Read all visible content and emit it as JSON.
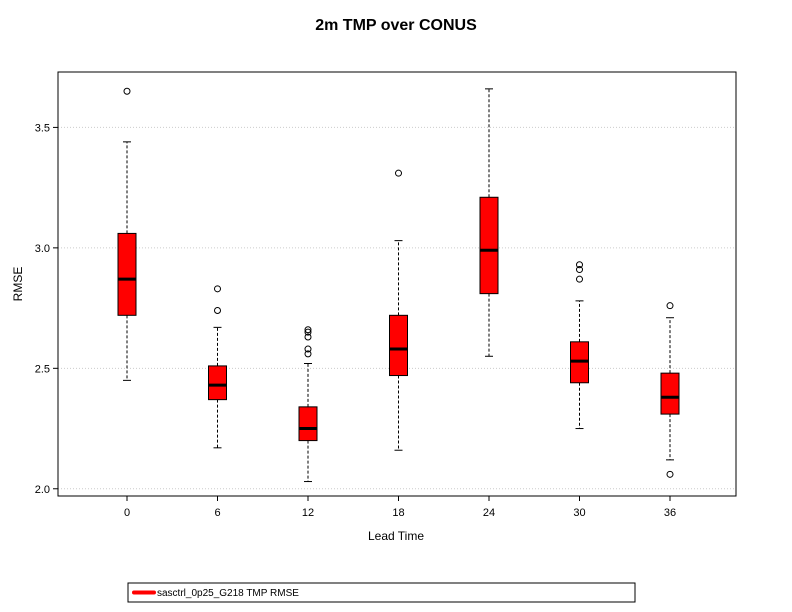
{
  "chart_data": {
    "type": "box",
    "title": "2m TMP over CONUS",
    "xlabel": "Lead Time",
    "ylabel": "RMSE",
    "categories": [
      "0",
      "6",
      "12",
      "18",
      "24",
      "30",
      "36"
    ],
    "yticks": [
      "2.0",
      "2.5",
      "3.0",
      "3.5"
    ],
    "ylim": [
      1.97,
      3.73
    ],
    "grid": true,
    "legend_position": "bottom",
    "series": [
      {
        "name": "sasctrl_0p25_G218 TMP RMSE",
        "color": "#ff0000",
        "boxes": [
          {
            "whisker_low": 2.45,
            "q1": 2.72,
            "median": 2.87,
            "q3": 3.06,
            "whisker_high": 3.44,
            "outliers": [
              3.65
            ]
          },
          {
            "whisker_low": 2.17,
            "q1": 2.37,
            "median": 2.43,
            "q3": 2.51,
            "whisker_high": 2.67,
            "outliers": [
              2.74,
              2.83
            ]
          },
          {
            "whisker_low": 2.03,
            "q1": 2.2,
            "median": 2.25,
            "q3": 2.34,
            "whisker_high": 2.52,
            "outliers": [
              2.56,
              2.58,
              2.63,
              2.65,
              2.66
            ]
          },
          {
            "whisker_low": 2.16,
            "q1": 2.47,
            "median": 2.58,
            "q3": 2.72,
            "whisker_high": 3.03,
            "outliers": [
              3.31
            ]
          },
          {
            "whisker_low": 2.55,
            "q1": 2.81,
            "median": 2.99,
            "q3": 3.21,
            "whisker_high": 3.66,
            "outliers": []
          },
          {
            "whisker_low": 2.25,
            "q1": 2.44,
            "median": 2.53,
            "q3": 2.61,
            "whisker_high": 2.78,
            "outliers": [
              2.87,
              2.91,
              2.93
            ]
          },
          {
            "whisker_low": 2.12,
            "q1": 2.31,
            "median": 2.38,
            "q3": 2.48,
            "whisker_high": 2.71,
            "outliers": [
              2.06,
              2.76
            ]
          }
        ]
      }
    ]
  }
}
